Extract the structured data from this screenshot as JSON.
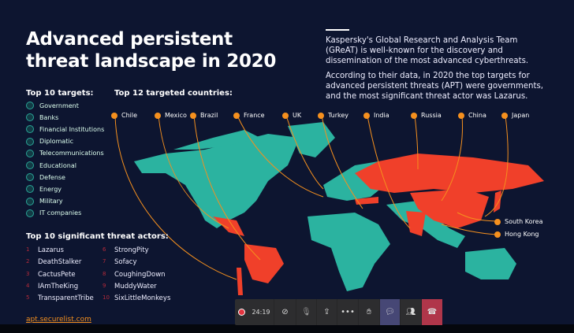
{
  "slide": {
    "title_lines": [
      "Advanced persistent",
      "threat landscape in 2020"
    ],
    "intro": [
      "Kaspersky's Global Research and Analysis Team",
      "(GReAT) is well-known for the discovery and",
      "dissemination of the most advanced cyberthreats."
    ],
    "summary": [
      "According to their data, in 2020 the top targets for",
      "advanced persistent threats (APT) were governments,",
      "and the most significant threat actor was Lazarus."
    ],
    "targets_heading": "Top 10 targets:",
    "targets": [
      "Government",
      "Banks",
      "Financial Institutions",
      "Diplomatic",
      "Telecommunications",
      "Educational",
      "Defense",
      "Energy",
      "Military",
      "IT companies"
    ],
    "countries_heading": "Top 12 targeted countries:",
    "countries": [
      "Chile",
      "Mexico",
      "Brazil",
      "France",
      "UK",
      "Turkey",
      "India",
      "Russia",
      "China",
      "Japan"
    ],
    "countries_side": [
      "South Korea",
      "Hong Kong"
    ],
    "actors_heading": "Top 10 significant threat actors:",
    "actors": [
      {
        "n": "1",
        "name": "Lazarus"
      },
      {
        "n": "2",
        "name": "DeathStalker"
      },
      {
        "n": "3",
        "name": "CactusPete"
      },
      {
        "n": "4",
        "name": "IAmTheKing"
      },
      {
        "n": "5",
        "name": "TransparentTribe"
      },
      {
        "n": "6",
        "name": "StrongPity"
      },
      {
        "n": "7",
        "name": "Sofacy"
      },
      {
        "n": "8",
        "name": "CoughingDown"
      },
      {
        "n": "9",
        "name": "MuddyWater"
      },
      {
        "n": "10",
        "name": "SixLittleMonkeys"
      }
    ],
    "link": "apt.securelist.com",
    "colors": {
      "background": "#0d1530",
      "land": "#2bb3a0",
      "targeted": "#f0402a",
      "accent": "#f5901e"
    }
  },
  "call_toolbar": {
    "timer": "24:19",
    "recording": true,
    "chat_active": true
  }
}
